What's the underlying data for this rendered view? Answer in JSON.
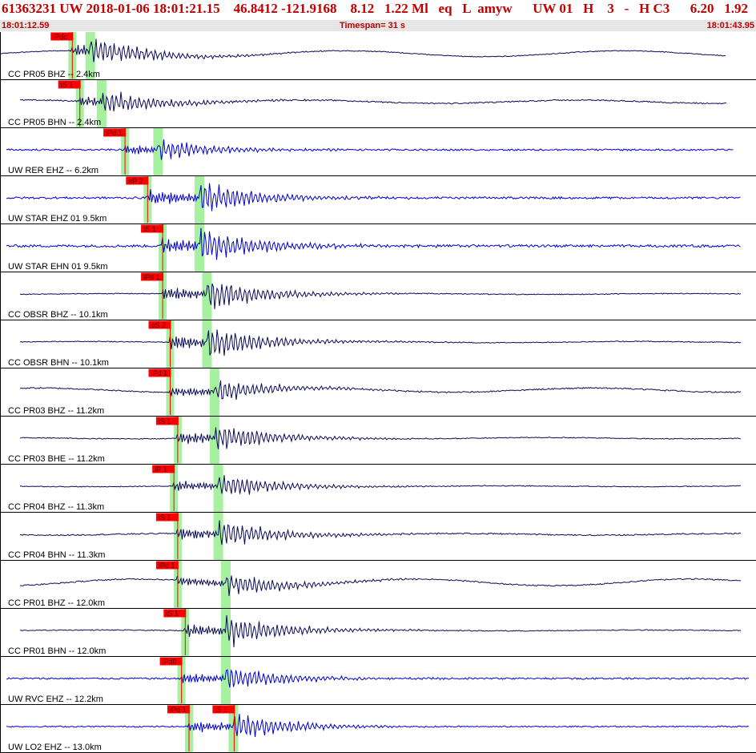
{
  "header": {
    "title": "61363231 UW 2018-01-06 18:01:21.15    46.8412 -121.9168    8.12   1.22 Ml   eq   L  amyw      UW 01   H    3   -   H C3      6.20   1.92",
    "start_time": "18:01:12.59",
    "timespan": "Timespan=  31 s",
    "end_time": "18:01:43.95"
  },
  "colors": {
    "title": "#c00000",
    "waveform_dark": "#0a0a5a",
    "waveform_blue": "#0000d0",
    "pick_flag": "#ff0000",
    "window": "#a6f0a0"
  },
  "channels": [
    {
      "label": "CC PR05 BHZ -- 2.4km",
      "color": "dark",
      "picks": [
        {
          "text": "iPdc"
        }
      ],
      "onset": 0.095,
      "s_onset": 0.12,
      "amp": 0.55,
      "noise": 0.02,
      "wave": 0.14,
      "end": 0.965
    },
    {
      "label": "CC PR05 BHN -- 2.4km",
      "color": "dark",
      "picks": [
        {
          "text": "iS 1"
        }
      ],
      "onset": 0.105,
      "s_onset": 0.135,
      "amp": 0.45,
      "noise": 0.03,
      "wave": 0.08,
      "end": 0.965
    },
    {
      "label": "UW RER EHZ -- 6.2km",
      "color": "blue",
      "picks": [
        {
          "text": "iPd 1"
        }
      ],
      "onset": 0.165,
      "s_onset": 0.21,
      "amp": 0.4,
      "noise": 0.04,
      "wave": 0.0,
      "end": 0.975
    },
    {
      "label": "UW STAR EHZ 01 9.5km",
      "color": "blue",
      "picks": [
        {
          "text": "eP 2"
        }
      ],
      "onset": 0.195,
      "s_onset": 0.265,
      "amp": 0.65,
      "noise": 0.05,
      "wave": 0.0,
      "end": 0.985
    },
    {
      "label": "UW STAR EHN 01 9.5km",
      "color": "blue",
      "picks": [
        {
          "text": "iS 1"
        }
      ],
      "onset": 0.215,
      "s_onset": 0.265,
      "amp": 0.7,
      "noise": 0.06,
      "wave": 0.0,
      "end": 0.985
    },
    {
      "label": "CC OBSR BHZ -- 10.1km",
      "color": "dark",
      "picks": [
        {
          "text": "iPd 1"
        }
      ],
      "onset": 0.215,
      "s_onset": 0.275,
      "amp": 0.6,
      "noise": 0.02,
      "wave": 0.02,
      "end": 0.985
    },
    {
      "label": "CC OBSR BHN -- 10.1km",
      "color": "dark",
      "picks": [
        {
          "text": "eS 2"
        }
      ],
      "onset": 0.225,
      "s_onset": 0.275,
      "amp": 0.65,
      "noise": 0.02,
      "wave": 0.03,
      "end": 0.985
    },
    {
      "label": "CC PR03 BHZ -- 11.2km",
      "color": "dark",
      "picks": [
        {
          "text": "iPd 1"
        }
      ],
      "onset": 0.225,
      "s_onset": 0.285,
      "amp": 0.45,
      "noise": 0.03,
      "wave": 0.1,
      "end": 0.985
    },
    {
      "label": "CC PR03 BHE -- 11.2km",
      "color": "dark",
      "picks": [
        {
          "text": "iS 1"
        }
      ],
      "onset": 0.235,
      "s_onset": 0.285,
      "amp": 0.55,
      "noise": 0.02,
      "wave": 0.03,
      "end": 0.985
    },
    {
      "label": "CC PR04 BHZ -- 11.3km",
      "color": "dark",
      "picks": [
        {
          "text": "iP 1"
        }
      ],
      "onset": 0.23,
      "s_onset": 0.29,
      "amp": 0.5,
      "noise": 0.02,
      "wave": 0.02,
      "end": 0.985
    },
    {
      "label": "CC PR04 BHN -- 11.3km",
      "color": "dark",
      "picks": [
        {
          "text": "iS 1"
        }
      ],
      "onset": 0.235,
      "s_onset": 0.29,
      "amp": 0.55,
      "noise": 0.03,
      "wave": 0.04,
      "end": 0.985
    },
    {
      "label": "CC PR01 BHZ -- 12.0km",
      "color": "dark",
      "picks": [
        {
          "text": "iPd 1"
        }
      ],
      "onset": 0.235,
      "s_onset": 0.3,
      "amp": 0.45,
      "noise": 0.03,
      "wave": 0.16,
      "end": 0.985
    },
    {
      "label": "CC PR01 BHN -- 12.0km",
      "color": "dark",
      "picks": [
        {
          "text": "iS 1"
        }
      ],
      "onset": 0.245,
      "s_onset": 0.3,
      "amp": 0.6,
      "noise": 0.02,
      "wave": 0.02,
      "end": 0.985
    },
    {
      "label": "UW RVC EHZ -- 12.2km",
      "color": "blue",
      "picks": [
        {
          "text": "iPd0"
        }
      ],
      "onset": 0.24,
      "s_onset": 0.3,
      "amp": 0.5,
      "noise": 0.04,
      "wave": 0.0,
      "end": 0.995
    },
    {
      "label": "UW LO2 EHZ -- 13.0km",
      "color": "blue",
      "picks": [
        {
          "text": "iPd 1"
        },
        {
          "text": "iS 1"
        }
      ],
      "onset": 0.25,
      "s_onset": 0.31,
      "amp": 0.55,
      "noise": 0.03,
      "wave": 0.0,
      "end": 0.995
    }
  ]
}
